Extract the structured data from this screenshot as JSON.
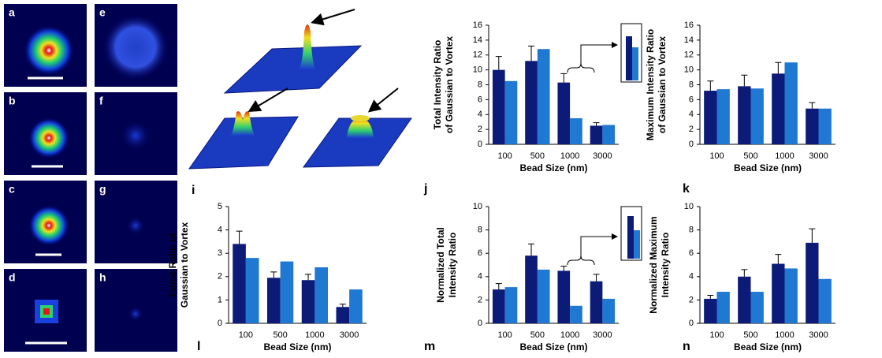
{
  "figure_panels": [
    "a",
    "b",
    "c",
    "d",
    "e",
    "f",
    "g",
    "h",
    "i"
  ],
  "chart_data": [
    {
      "type": "bar",
      "panel": "j",
      "ylabel": [
        "Total Intensity Ratio",
        "of Gaussian to Vortex"
      ],
      "xlabel": "Bead Size (nm)",
      "categories": [
        "100",
        "500",
        "1000",
        "3000"
      ],
      "ylim": [
        0,
        16
      ],
      "yticks": [
        0,
        2,
        4,
        6,
        8,
        10,
        12,
        14,
        16
      ],
      "series": [
        {
          "color": "#0c1a78",
          "values": [
            10,
            11.2,
            8.3,
            2.5
          ],
          "errors": [
            1.8,
            2,
            1.2,
            0.4
          ]
        },
        {
          "color": "#1f78d1",
          "values": [
            8.5,
            12.8,
            3.5,
            2.6
          ]
        }
      ]
    },
    {
      "type": "bar",
      "panel": "k",
      "ylabel": [
        "Maximum Intensity Ratio",
        "of Gaussian to Vortex"
      ],
      "xlabel": "Bead Size (nm)",
      "categories": [
        "100",
        "500",
        "1000",
        "3000"
      ],
      "ylim": [
        0,
        16
      ],
      "yticks": [
        0,
        2,
        4,
        6,
        8,
        10,
        12,
        14,
        16
      ],
      "series": [
        {
          "color": "#0c1a78",
          "values": [
            7.2,
            7.8,
            9.5,
            4.8
          ],
          "errors": [
            1.3,
            1.5,
            1.5,
            0.8
          ]
        },
        {
          "color": "#1f78d1",
          "values": [
            7.4,
            7.5,
            11,
            4.8
          ]
        }
      ]
    },
    {
      "type": "bar",
      "panel": "l",
      "ylabel": [
        "Force Ratio of",
        "Gaussian to Vortex"
      ],
      "xlabel": "Bead Size (nm)",
      "categories": [
        "100",
        "500",
        "1000",
        "3000"
      ],
      "ylim": [
        0,
        5
      ],
      "yticks": [
        0,
        1,
        2,
        3,
        4,
        5
      ],
      "series": [
        {
          "color": "#0c1a78",
          "values": [
            3.4,
            1.95,
            1.85,
            0.7
          ],
          "errors": [
            0.55,
            0.25,
            0.25,
            0.12
          ]
        },
        {
          "color": "#1f78d1",
          "values": [
            2.8,
            2.65,
            2.4,
            1.45
          ]
        }
      ]
    },
    {
      "type": "bar",
      "panel": "m",
      "ylabel": [
        "Normalized Total",
        "Intensity Ratio"
      ],
      "xlabel": "Bead Size (nm)",
      "categories": [
        "100",
        "500",
        "1000",
        "3000"
      ],
      "ylim": [
        0,
        10
      ],
      "yticks": [
        0,
        2,
        4,
        6,
        8,
        10
      ],
      "series": [
        {
          "color": "#0c1a78",
          "values": [
            2.9,
            5.8,
            4.5,
            3.6
          ],
          "errors": [
            0.5,
            1.0,
            0.4,
            0.6
          ]
        },
        {
          "color": "#1f78d1",
          "values": [
            3.1,
            4.6,
            1.5,
            2.1
          ]
        }
      ]
    },
    {
      "type": "bar",
      "panel": "n",
      "ylabel": [
        "Normalized Maximum",
        "Intensity Ratio"
      ],
      "xlabel": "Bead Size (nm)",
      "categories": [
        "100",
        "500",
        "1000",
        "3000"
      ],
      "ylim": [
        0,
        10
      ],
      "yticks": [
        0,
        2,
        4,
        6,
        8,
        10
      ],
      "series": [
        {
          "color": "#0c1a78",
          "values": [
            2.1,
            4.0,
            5.1,
            6.9
          ],
          "errors": [
            0.3,
            0.6,
            0.8,
            1.2
          ]
        },
        {
          "color": "#1f78d1",
          "values": [
            2.7,
            2.7,
            4.7,
            3.8
          ]
        }
      ]
    }
  ]
}
